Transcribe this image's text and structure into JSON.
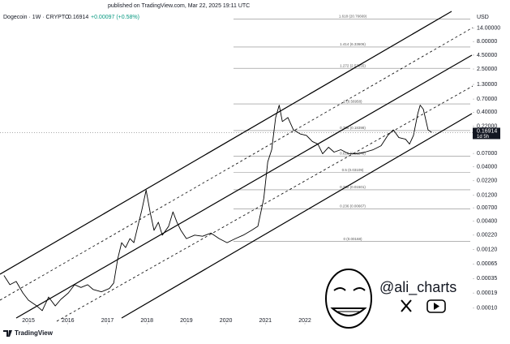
{
  "header": {
    "published": "published on TradingView.com, Mar 22, 2025 19:11 UTC"
  },
  "chart_data": {
    "type": "line",
    "title": "Dogecoin · 1W · CRYPTO",
    "quote": "0.16914",
    "change": "+0.00097 (+0.58%)",
    "y_unit": "USD",
    "color": "#000000",
    "log_scale": true,
    "x": [
      2014.38,
      2014.53,
      2014.69,
      2014.86,
      2015.0,
      2015.21,
      2015.35,
      2015.51,
      2015.68,
      2015.82,
      2016.01,
      2016.17,
      2016.33,
      2016.5,
      2016.64,
      2016.85,
      2017.05,
      2017.16,
      2017.26,
      2017.36,
      2017.46,
      2017.57,
      2017.67,
      2017.77,
      2017.87,
      2017.98,
      2018.08,
      2018.18,
      2018.29,
      2018.39,
      2018.55,
      2018.66,
      2018.76,
      2018.86,
      2019.0,
      2019.21,
      2019.41,
      2019.62,
      2019.83,
      2020.03,
      2020.24,
      2020.44,
      2020.65,
      2020.81,
      2020.96,
      2021.06,
      2021.16,
      2021.26,
      2021.35,
      2021.43,
      2021.57,
      2021.71,
      2021.88,
      2022.04,
      2022.19,
      2022.33,
      2022.45,
      2022.6,
      2022.74,
      2022.91,
      2023.11,
      2023.32,
      2023.52,
      2023.73,
      2023.93,
      2024.1,
      2024.24,
      2024.38,
      2024.55,
      2024.65,
      2024.75,
      2024.86,
      2024.92,
      2025.0,
      2025.12,
      2025.21
    ],
    "values": [
      0.0004,
      0.00027,
      0.00031,
      0.00019,
      0.00014,
      0.00011,
      9e-05,
      0.00016,
      0.00011,
      0.000145,
      0.00019,
      0.00027,
      0.00024,
      0.00027,
      0.00022,
      0.0002,
      0.00023,
      0.00029,
      0.0008,
      0.0016,
      0.0013,
      0.0019,
      0.0016,
      0.0032,
      0.0063,
      0.0148,
      0.0059,
      0.0027,
      0.0038,
      0.0022,
      0.0032,
      0.0059,
      0.0038,
      0.0027,
      0.0019,
      0.0022,
      0.0021,
      0.0024,
      0.0019,
      0.0016,
      0.0019,
      0.0022,
      0.0027,
      0.0032,
      0.0105,
      0.049,
      0.082,
      0.32,
      0.54,
      0.27,
      0.32,
      0.19,
      0.16,
      0.15,
      0.116,
      0.104,
      0.069,
      0.091,
      0.074,
      0.082,
      0.069,
      0.069,
      0.074,
      0.082,
      0.097,
      0.15,
      0.19,
      0.137,
      0.128,
      0.104,
      0.15,
      0.38,
      0.54,
      0.455,
      0.19,
      0.17
    ],
    "xlim": [
      2014.28,
      2026.25
    ],
    "xticks": [
      2015,
      2016,
      2017,
      2018,
      2019,
      2020,
      2021,
      2022
    ],
    "ylim": [
      5e-05,
      25
    ],
    "yticks": [
      {
        "value": 14,
        "label": "14.00000"
      },
      {
        "value": 8,
        "label": "8.00000"
      },
      {
        "value": 4.5,
        "label": "4.50000"
      },
      {
        "value": 2.5,
        "label": "2.50000"
      },
      {
        "value": 1.3,
        "label": "1.30000"
      },
      {
        "value": 0.7,
        "label": "0.70000"
      },
      {
        "value": 0.4,
        "label": "0.40000"
      },
      {
        "value": 0.22,
        "label": "0.22000"
      },
      {
        "value": 0.07,
        "label": "0.07000"
      },
      {
        "value": 0.04,
        "label": "0.04000"
      },
      {
        "value": 0.022,
        "label": "0.02200"
      },
      {
        "value": 0.012,
        "label": "0.01200"
      },
      {
        "value": 0.007,
        "label": "0.00700"
      },
      {
        "value": 0.004,
        "label": "0.00400"
      },
      {
        "value": 0.0022,
        "label": "0.00220"
      },
      {
        "value": 0.0012,
        "label": "0.00120"
      },
      {
        "value": 0.00065,
        "label": "0.00065"
      },
      {
        "value": 0.00035,
        "label": "0.00035"
      },
      {
        "value": 0.00019,
        "label": "0.00019"
      },
      {
        "value": 0.0001,
        "label": "0.00010"
      }
    ],
    "price_tag": {
      "value": 0.16914,
      "label": "0.16914"
    },
    "countdown": "1d 5h",
    "fib_levels": [
      {
        "value": 20.76669,
        "label": "1.618 (20.76669)"
      },
      {
        "value": 6.33606,
        "label": "1.414 (6.33606)"
      },
      {
        "value": 2.57255,
        "label": "1.272 (2.57255)"
      },
      {
        "value": 0.56958,
        "label": "1 (0.56958)"
      },
      {
        "value": 0.18398,
        "label": "0.786 (0.18398)"
      },
      {
        "value": 0.06246,
        "label": "0.618 (0.06246)"
      },
      {
        "value": 0.03109,
        "label": "0.5 (0.03109)"
      },
      {
        "value": 0.01501,
        "label": "0.382 (0.01501)"
      },
      {
        "value": 0.00667,
        "label": "0.236 (0.00667)"
      },
      {
        "value": 0.00168,
        "label": "0 (0.00168)"
      }
    ]
  },
  "watermark": {
    "handle": "@ali_charts",
    "brand": "TradingView"
  }
}
